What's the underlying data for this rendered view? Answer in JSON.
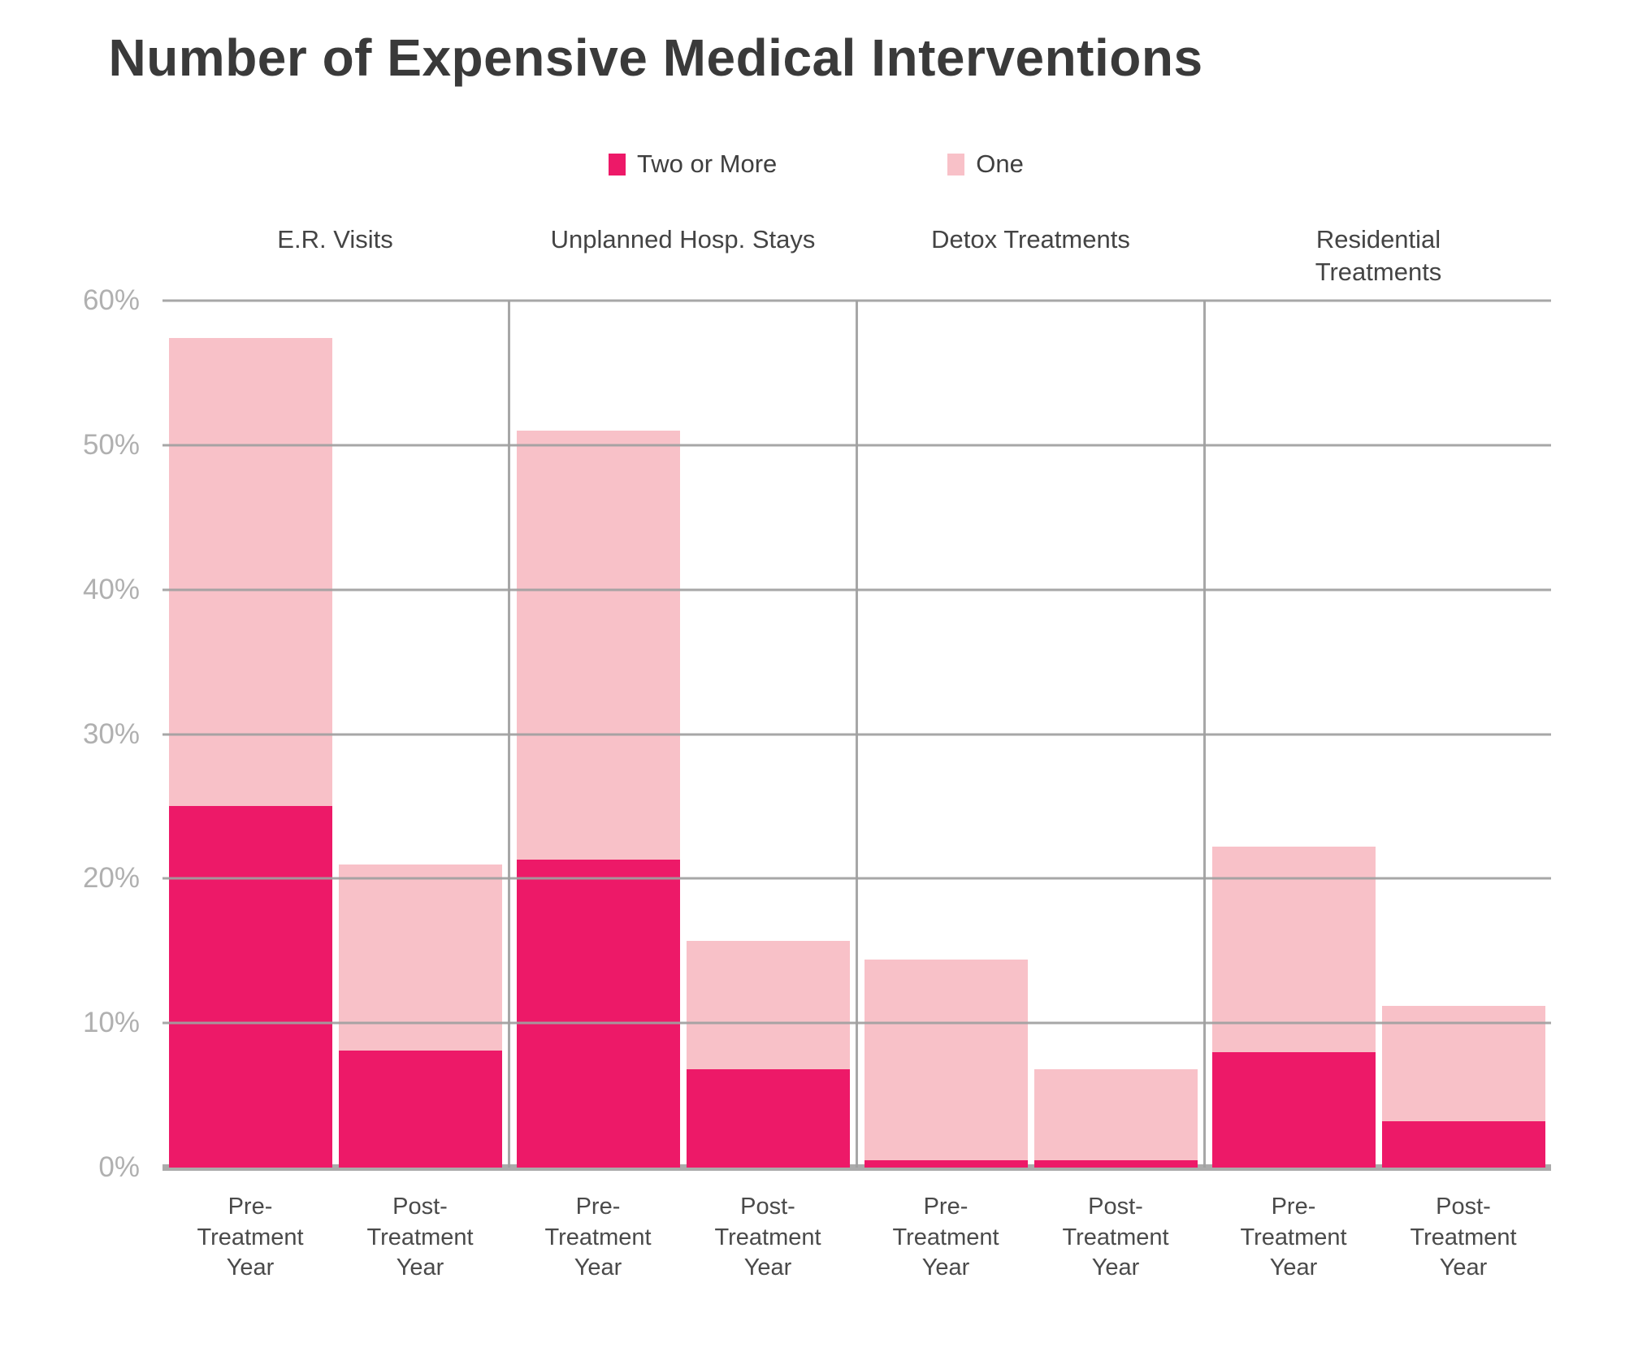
{
  "chart_data": {
    "type": "bar",
    "stacked": true,
    "title": "Number of Expensive Medical Interventions",
    "legend_position": "top",
    "grid": true,
    "ylim": [
      0,
      60
    ],
    "yticks": [
      {
        "value": 0,
        "label": "0%"
      },
      {
        "value": 10,
        "label": "10%"
      },
      {
        "value": 20,
        "label": "20%"
      },
      {
        "value": 30,
        "label": "30%"
      },
      {
        "value": 40,
        "label": "40%"
      },
      {
        "value": 50,
        "label": "50%"
      },
      {
        "value": 60,
        "label": "60%"
      }
    ],
    "series": [
      {
        "key": "two_or_more",
        "name": "Two or More",
        "color": "#ED1968"
      },
      {
        "key": "one",
        "name": "One",
        "color": "#F8C1C8"
      }
    ],
    "groups": [
      {
        "label": "E.R. Visits",
        "bars": [
          {
            "label": "Pre-Treatment Year",
            "values": {
              "two_or_more": 25.0,
              "one": 32.4
            },
            "total": 57.4
          },
          {
            "label": "Post-Treatment Year",
            "values": {
              "two_or_more": 8.1,
              "one": 12.9
            },
            "total": 21.0
          }
        ]
      },
      {
        "label": "Unplanned Hosp. Stays",
        "bars": [
          {
            "label": "Pre-Treatment Year",
            "values": {
              "two_or_more": 21.3,
              "one": 29.7
            },
            "total": 51.0
          },
          {
            "label": "Post-Treatment Year",
            "values": {
              "two_or_more": 6.8,
              "one": 8.9
            },
            "total": 15.7
          }
        ]
      },
      {
        "label": "Detox Treatments",
        "bars": [
          {
            "label": "Pre-Treatment Year",
            "values": {
              "two_or_more": 0.5,
              "one": 13.9
            },
            "total": 14.4
          },
          {
            "label": "Post-Treatment Year",
            "values": {
              "two_or_more": 0.5,
              "one": 6.3
            },
            "total": 6.8
          }
        ]
      },
      {
        "label": "Residential Treatments",
        "bars": [
          {
            "label": "Pre-Treatment Year",
            "values": {
              "two_or_more": 8.0,
              "one": 14.2
            },
            "total": 22.2
          },
          {
            "label": "Post-Treatment Year",
            "values": {
              "two_or_more": 3.2,
              "one": 8.0
            },
            "total": 11.2
          }
        ]
      }
    ]
  }
}
